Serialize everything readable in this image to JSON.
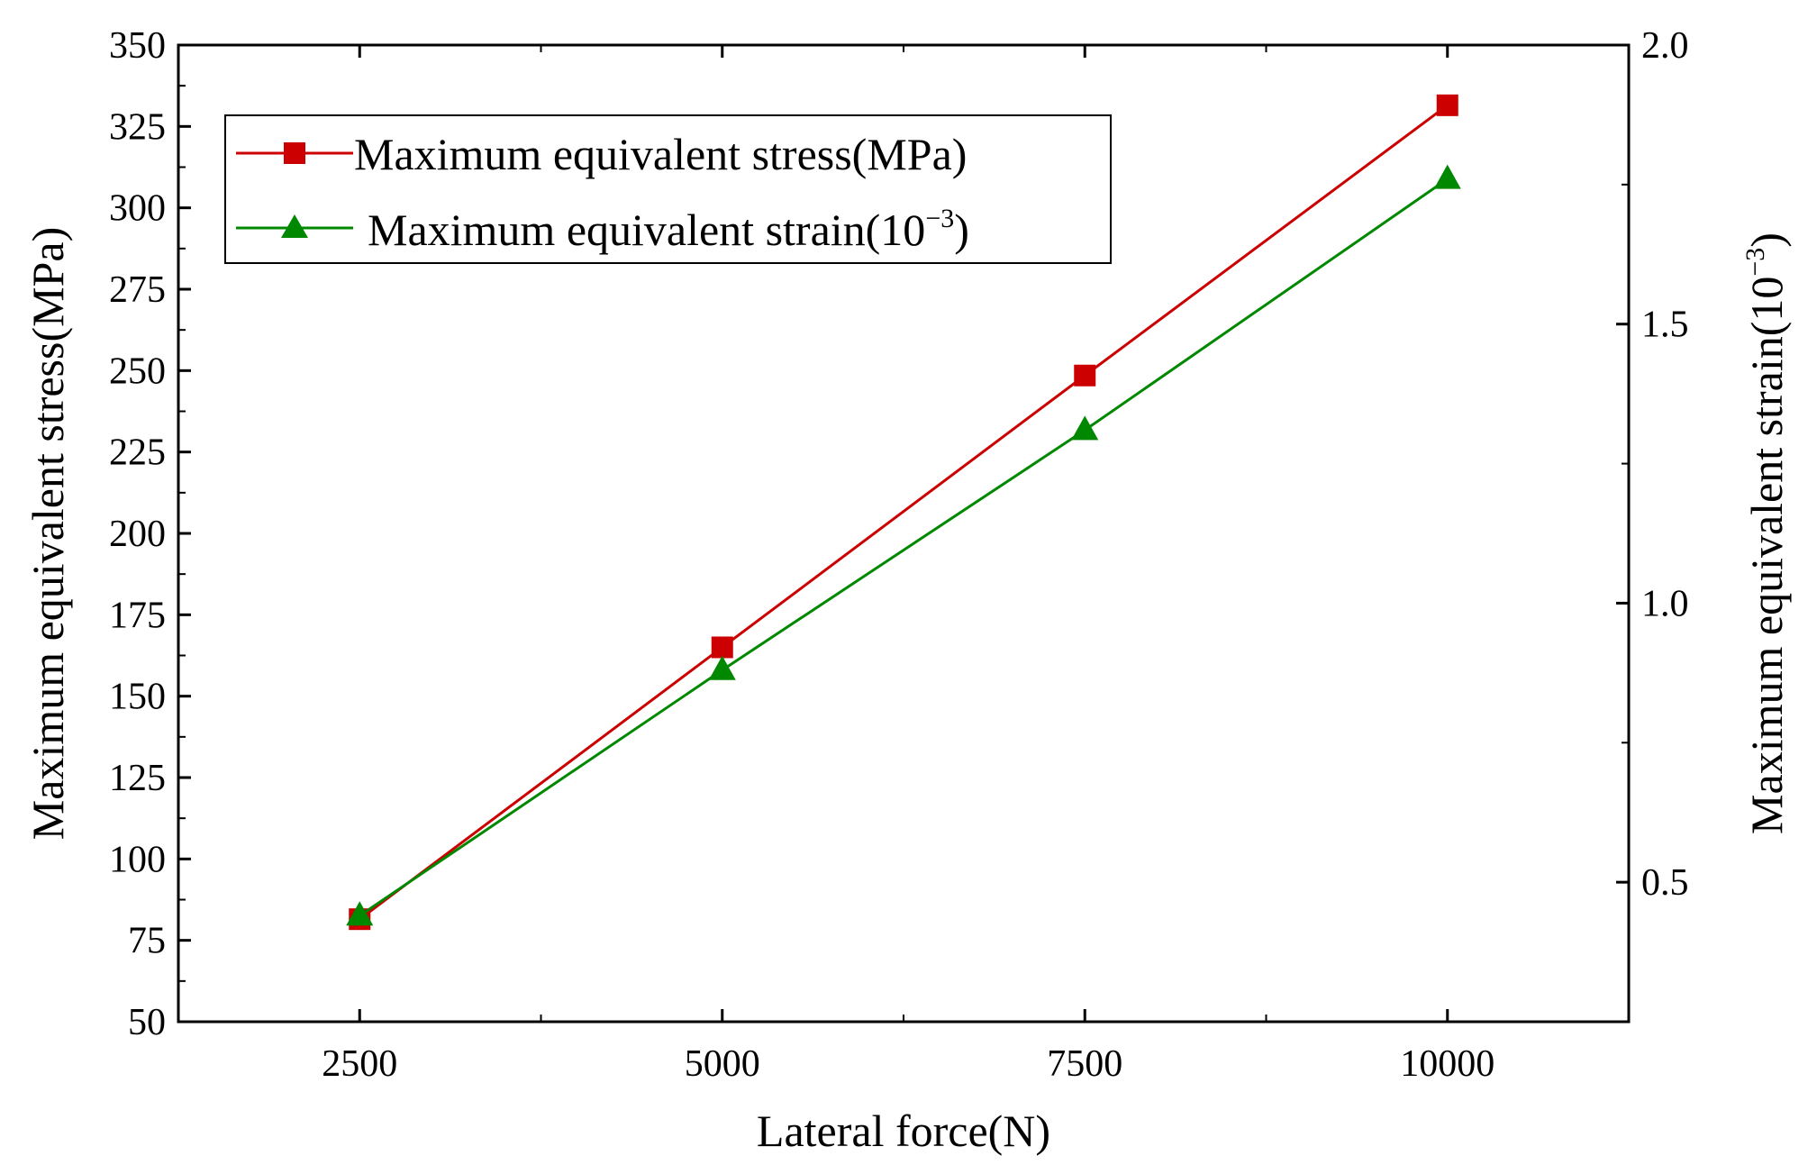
{
  "chart_data": {
    "type": "line",
    "title": "",
    "xlabel": "Lateral force(N)",
    "ylabel": "Maximum equivalent stress(MPa)",
    "y2label_base": "Maximum equivalent strain(10",
    "y2label_exp": "−3",
    "y2label_close": ")",
    "x": [
      2500,
      5000,
      7500,
      10000
    ],
    "xlim": [
      1250,
      11250
    ],
    "ylim": [
      50,
      350
    ],
    "y2lim": [
      0.25,
      2.0
    ],
    "x_ticks": [
      2500,
      5000,
      7500,
      10000
    ],
    "x_tick_labels": [
      "2500",
      "5000",
      "7500",
      "10000"
    ],
    "y_ticks": [
      50,
      75,
      100,
      125,
      150,
      175,
      200,
      225,
      250,
      275,
      300,
      325,
      350
    ],
    "y_tick_labels": [
      "50",
      "75",
      "100",
      "125",
      "150",
      "175",
      "200",
      "225",
      "250",
      "275",
      "300",
      "325",
      "350"
    ],
    "y2_ticks": [
      0.5,
      1.0,
      1.5,
      2.0
    ],
    "y2_tick_labels": [
      "0.5",
      "1.0",
      "1.5",
      "2.0"
    ],
    "series": [
      {
        "name": "Maximum equivalent stress(MPa)",
        "axis": "left",
        "marker": "square",
        "color": "#cc0000",
        "values": [
          81.5,
          165,
          248.5,
          331.5
        ]
      },
      {
        "name": "Maximum equivalent strain(10",
        "name_exp": "−3",
        "name_close": ")",
        "axis": "right",
        "marker": "triangle",
        "color": "#008800",
        "values": [
          0.44,
          0.88,
          1.31,
          1.76
        ]
      }
    ],
    "legend_position": "top-left"
  }
}
